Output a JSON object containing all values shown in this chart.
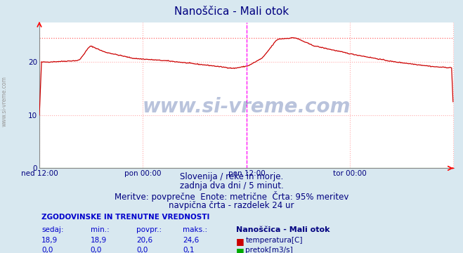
{
  "title": "Nanoščica - Mali otok",
  "title_color": "#000080",
  "bg_color": "#d8e8f0",
  "plot_bg_color": "#ffffff",
  "grid_color": "#ffaaaa",
  "grid_style": ":",
  "xlim": [
    0,
    576
  ],
  "ylim": [
    0,
    27.4
  ],
  "yticks": [
    0,
    10,
    20
  ],
  "xtick_labels": [
    "ned 12:00",
    "pon 00:00",
    "pon 12:00",
    "tor 00:00"
  ],
  "xtick_positions": [
    0,
    144,
    288,
    432
  ],
  "vline_pos": 288,
  "hline_max": 24.6,
  "temperature_color": "#cc0000",
  "flow_color": "#00aa00",
  "watermark": "www.si-vreme.com",
  "watermark_color": "#1a3a8c",
  "watermark_alpha": 0.3,
  "subtitle_lines": [
    "Slovenija / reke in morje.",
    "zadnja dva dni / 5 minut.",
    "Meritve: povprečne  Enote: metrične  Črta: 95% meritev",
    "navpična črta - razdelek 24 ur"
  ],
  "subtitle_color": "#000080",
  "subtitle_fontsize": 8.5,
  "table_header": "ZGODOVINSKE IN TRENUTNE VREDNOSTI",
  "table_cols": [
    "sedaj:",
    "min.:",
    "povpr.:",
    "maks.:"
  ],
  "table_col_color": "#0000cc",
  "temp_row": [
    "18,9",
    "18,9",
    "20,6",
    "24,6"
  ],
  "flow_row": [
    "0,0",
    "0,0",
    "0,0",
    "0,1"
  ],
  "legend_label1": "temperatura[C]",
  "legend_label2": "pretok[m3/s]",
  "station_label": "Nanoščica - Mali otok"
}
